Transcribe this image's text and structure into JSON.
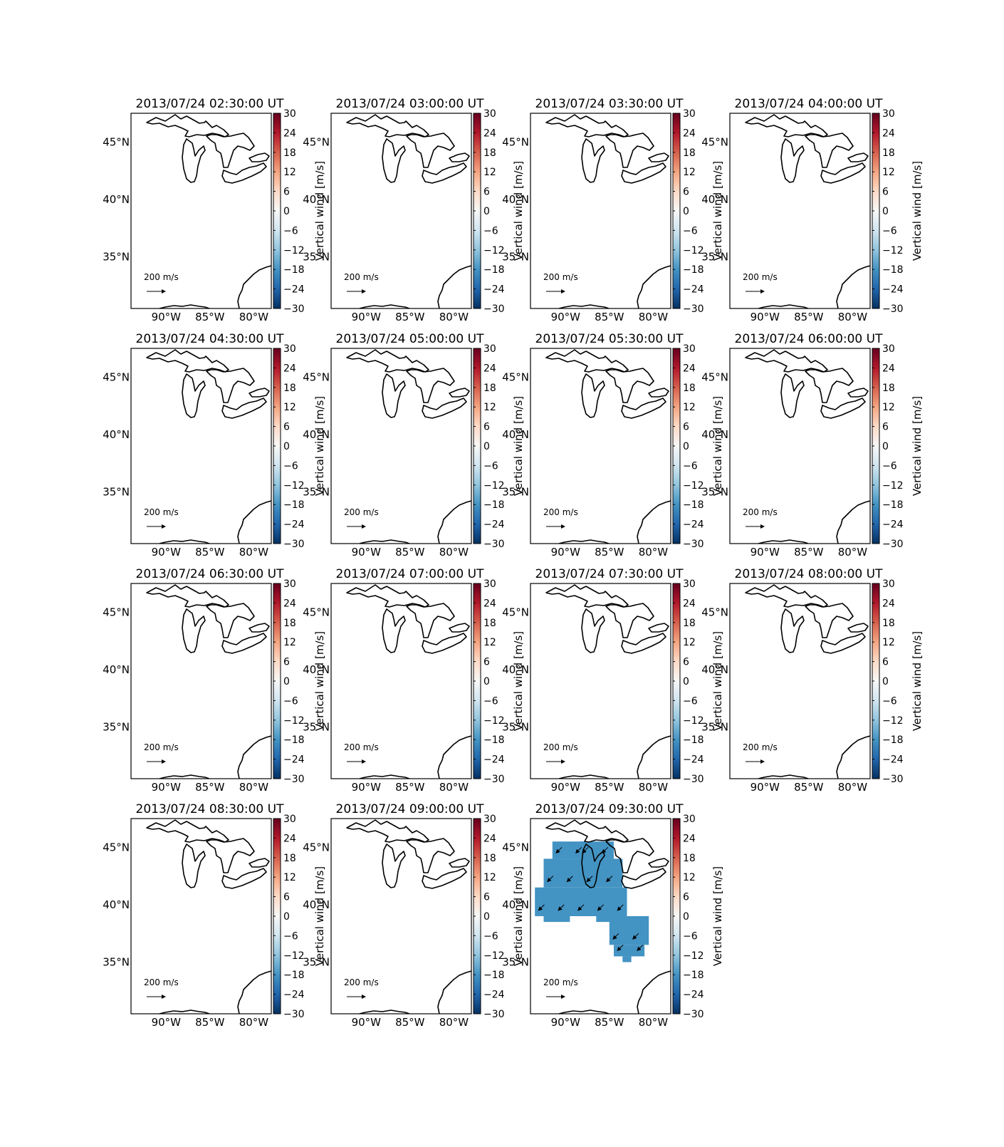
{
  "chart_data": {
    "type": "map",
    "description_free": true,
    "map_extent": {
      "lon": [
        -94,
        -78
      ],
      "lat": [
        30.5,
        47.5
      ]
    },
    "lon_ticks": [
      {
        "value": -90,
        "label": "90°W"
      },
      {
        "value": -85,
        "label": "85°W"
      },
      {
        "value": -80,
        "label": "80°W"
      }
    ],
    "lat_ticks": [
      {
        "value": 45,
        "label": "45°N"
      },
      {
        "value": 40,
        "label": "40°N"
      },
      {
        "value": 35,
        "label": "35°N"
      }
    ],
    "colorbar": {
      "label": "Vertical wind [m/s]",
      "colormap": [
        "#053061",
        "#2166ac",
        "#4393c3",
        "#92c5de",
        "#d1e5f0",
        "#f7f7f7",
        "#fddbc7",
        "#f4a582",
        "#d6604d",
        "#b2182b",
        "#67001f"
      ],
      "range": [
        -30,
        30
      ],
      "ticks": [
        "30",
        "24",
        "18",
        "12",
        "6",
        "0",
        "−6",
        "−12",
        "−18",
        "−24",
        "−30"
      ]
    },
    "quiver_key": {
      "value": "200",
      "units": "m/s"
    },
    "panels": [
      {
        "title": "2013/07/24 02:30:00 UT",
        "vertical_wind_cells": []
      },
      {
        "title": "2013/07/24 03:00:00 UT",
        "vertical_wind_cells": []
      },
      {
        "title": "2013/07/24 03:30:00 UT",
        "vertical_wind_cells": []
      },
      {
        "title": "2013/07/24 04:00:00 UT",
        "vertical_wind_cells": []
      },
      {
        "title": "2013/07/24 04:30:00 UT",
        "vertical_wind_cells": []
      },
      {
        "title": "2013/07/24 05:00:00 UT",
        "vertical_wind_cells": []
      },
      {
        "title": "2013/07/24 05:30:00 UT",
        "vertical_wind_cells": []
      },
      {
        "title": "2013/07/24 06:00:00 UT",
        "vertical_wind_cells": []
      },
      {
        "title": "2013/07/24 06:30:00 UT",
        "vertical_wind_cells": []
      },
      {
        "title": "2013/07/24 07:00:00 UT",
        "vertical_wind_cells": []
      },
      {
        "title": "2013/07/24 07:30:00 UT",
        "vertical_wind_cells": []
      },
      {
        "title": "2013/07/24 08:00:00 UT",
        "vertical_wind_cells": []
      },
      {
        "title": "2013/07/24 08:30:00 UT",
        "vertical_wind_cells": []
      },
      {
        "title": "2013/07/24 09:00:00 UT",
        "vertical_wind_cells": []
      },
      {
        "title": "2013/07/24 09:30:00 UT",
        "vertical_wind_cells": [
          {
            "lon_range": [
              -91.5,
              -87.0
            ],
            "lat_range": [
              44.0,
              45.5
            ],
            "value": -20
          },
          {
            "lon_range": [
              -88.5,
              -84.5
            ],
            "lat_range": [
              44.0,
              45.5
            ],
            "value": -20
          },
          {
            "lon_range": [
              -92.5,
              -83.5
            ],
            "lat_range": [
              41.5,
              44.0
            ],
            "value": -20
          },
          {
            "lon_range": [
              -93.5,
              -83.0
            ],
            "lat_range": [
              39.0,
              41.5
            ],
            "value": -20
          },
          {
            "lon_range": [
              -92.5,
              -89.5
            ],
            "lat_range": [
              38.5,
              39.0
            ],
            "value": -20
          },
          {
            "lon_range": [
              -86.5,
              -83.0
            ],
            "lat_range": [
              38.5,
              39.0
            ],
            "value": -20
          },
          {
            "lon_range": [
              -85.0,
              -80.5
            ],
            "lat_range": [
              36.5,
              39.0
            ],
            "value": -20
          },
          {
            "lon_range": [
              -84.5,
              -81.0
            ],
            "lat_range": [
              35.5,
              36.5
            ],
            "value": -20
          },
          {
            "lon_range": [
              -83.5,
              -82.5
            ],
            "lat_range": [
              35.0,
              35.5
            ],
            "value": -20
          }
        ],
        "wind_vectors_direction": "southwest"
      }
    ]
  }
}
